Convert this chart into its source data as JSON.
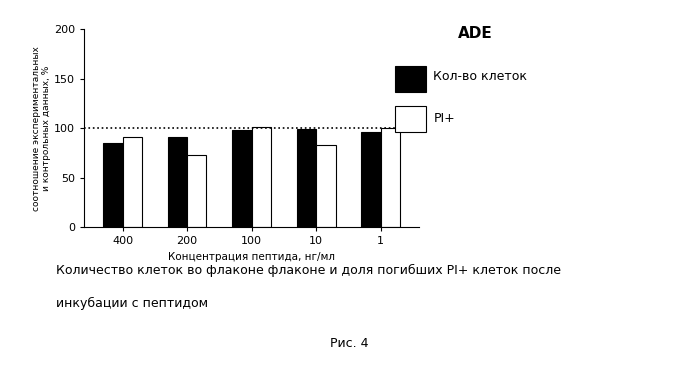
{
  "title": "ADE",
  "legend_labels": [
    "Кол-во клеток",
    "PI+"
  ],
  "xlabel": "Концентрация пептида, нг/мл",
  "ylabel": "соотношение экспериментальных\nи контрольных данных, %",
  "categories": [
    "400",
    "200",
    "100",
    "10",
    "1"
  ],
  "black_bars": [
    85,
    91,
    98,
    99,
    96
  ],
  "white_bars": [
    91,
    73,
    101,
    83,
    100
  ],
  "ylim": [
    0,
    200
  ],
  "yticks": [
    0,
    50,
    100,
    150,
    200
  ],
  "hline_y": 100,
  "bar_width": 0.3,
  "caption_line1": "Количество клеток во флаконе флаконе и доля погибших PI+ клеток после",
  "caption_line2": "инкубации с пептидом",
  "fig_label": "Рис. 4",
  "background_color": "#ffffff"
}
